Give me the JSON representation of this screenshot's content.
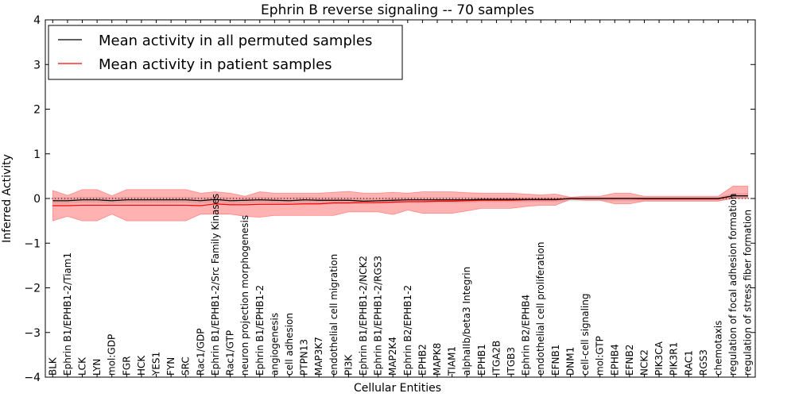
{
  "chart_data": {
    "type": "line",
    "title": "Ephrin B reverse signaling -- 70 samples",
    "xlabel": "Cellular Entities",
    "ylabel": "Inferred Activity",
    "ylim": [
      -4,
      4
    ],
    "yticks": [
      -4,
      -3,
      -2,
      -1,
      0,
      1,
      2,
      3,
      4
    ],
    "ytick_labels": [
      "−4",
      "−3",
      "−2",
      "−1",
      "0",
      "1",
      "2",
      "3",
      "4"
    ],
    "legend_position": "top-left",
    "categories": [
      "BLK",
      "Ephrin B1/EPHB1-2/Tiam1",
      "LCK",
      "LYN",
      "mol:GDP",
      "FGR",
      "HCK",
      "YES1",
      "FYN",
      "SRC",
      "Rac1/GDP",
      "Ephrin B1/EPHB1-2/Src Family Kinases",
      "Rac1/GTP",
      "neuron projection morphogenesis",
      "Ephrin B1/EPHB1-2",
      "angiogenesis",
      "cell adhesion",
      "PTPN13",
      "MAP3K7",
      "endothelial cell migration",
      "PI3K",
      "Ephrin B1/EPHB1-2/NCK2",
      "Ephrin B1/EPHB1-2/RGS3",
      "MAP2K4",
      "Ephrin B2/EPHB1-2",
      "EPHB2",
      "MAPK8",
      "TIAM1",
      "alphaIIb/beta3 Integrin",
      "EPHB1",
      "ITGA2B",
      "ITGB3",
      "Ephrin B2/EPHB4",
      "endothelial cell proliferation",
      "EFNB1",
      "DNM1",
      "cell-cell signaling",
      "mol:GTP",
      "EPHB4",
      "EFNB2",
      "NCK2",
      "PIK3CA",
      "PIK3R1",
      "RAC1",
      "RGS3",
      "chemotaxis",
      "regulation of focal adhesion formation",
      "regulation of stress fiber formation"
    ],
    "series": [
      {
        "name": "Mean activity in all permuted samples",
        "color": "#000000",
        "values": [
          -0.05,
          -0.05,
          -0.03,
          -0.03,
          -0.05,
          -0.03,
          -0.03,
          -0.03,
          -0.03,
          -0.03,
          -0.05,
          -0.02,
          -0.05,
          -0.04,
          -0.03,
          -0.04,
          -0.05,
          -0.03,
          -0.04,
          -0.04,
          -0.04,
          -0.06,
          -0.05,
          -0.04,
          -0.03,
          -0.03,
          -0.03,
          -0.03,
          -0.03,
          -0.02,
          -0.02,
          -0.02,
          -0.02,
          -0.02,
          -0.02,
          0.0,
          0.0,
          0.0,
          0.0,
          0.0,
          0.0,
          0.0,
          0.0,
          0.0,
          0.0,
          0.0,
          0.06,
          0.06
        ],
        "band_upper": [
          0.03,
          0.03,
          0.04,
          0.04,
          0.03,
          0.04,
          0.04,
          0.04,
          0.04,
          0.04,
          0.03,
          0.04,
          0.03,
          0.03,
          0.04,
          0.03,
          0.03,
          0.04,
          0.03,
          0.03,
          0.03,
          0.02,
          0.02,
          0.03,
          0.03,
          0.03,
          0.03,
          0.03,
          0.03,
          0.03,
          0.03,
          0.03,
          0.03,
          0.03,
          0.03,
          0.03,
          0.03,
          0.03,
          0.03,
          0.03,
          0.03,
          0.03,
          0.03,
          0.03,
          0.03,
          0.03,
          0.12,
          0.12
        ],
        "band_lower": [
          -0.12,
          -0.12,
          -0.1,
          -0.1,
          -0.12,
          -0.1,
          -0.1,
          -0.1,
          -0.1,
          -0.1,
          -0.12,
          -0.09,
          -0.12,
          -0.11,
          -0.1,
          -0.11,
          -0.12,
          -0.1,
          -0.11,
          -0.11,
          -0.11,
          -0.13,
          -0.12,
          -0.11,
          -0.1,
          -0.1,
          -0.1,
          -0.1,
          -0.1,
          -0.08,
          -0.08,
          -0.08,
          -0.08,
          -0.08,
          -0.08,
          -0.06,
          -0.06,
          -0.06,
          -0.06,
          -0.06,
          -0.06,
          -0.06,
          -0.06,
          -0.06,
          -0.06,
          -0.06,
          0.0,
          0.0
        ]
      },
      {
        "name": "Mean activity in patient samples",
        "color": "#ff0000",
        "values": [
          -0.16,
          -0.16,
          -0.15,
          -0.15,
          -0.15,
          -0.15,
          -0.15,
          -0.15,
          -0.15,
          -0.15,
          -0.16,
          -0.12,
          -0.14,
          -0.14,
          -0.13,
          -0.13,
          -0.13,
          -0.12,
          -0.12,
          -0.1,
          -0.1,
          -0.09,
          -0.09,
          -0.08,
          -0.07,
          -0.07,
          -0.06,
          -0.06,
          -0.05,
          -0.04,
          -0.04,
          -0.04,
          -0.03,
          -0.03,
          -0.03,
          0.0,
          0.0,
          0.0,
          0.0,
          0.0,
          -0.01,
          -0.01,
          -0.01,
          -0.01,
          -0.01,
          -0.01,
          0.06,
          0.06
        ],
        "band_upper": [
          0.18,
          0.07,
          0.2,
          0.2,
          0.06,
          0.2,
          0.2,
          0.2,
          0.2,
          0.2,
          0.12,
          0.15,
          0.12,
          0.05,
          0.15,
          0.12,
          0.12,
          0.12,
          0.12,
          0.14,
          0.16,
          0.12,
          0.12,
          0.14,
          0.12,
          0.15,
          0.15,
          0.15,
          0.13,
          0.12,
          0.12,
          0.12,
          0.1,
          0.08,
          0.1,
          0.03,
          0.05,
          0.05,
          0.12,
          0.12,
          0.05,
          0.05,
          0.05,
          0.05,
          0.05,
          0.05,
          0.28,
          0.28
        ],
        "band_lower": [
          -0.5,
          -0.4,
          -0.5,
          -0.5,
          -0.35,
          -0.5,
          -0.5,
          -0.5,
          -0.5,
          -0.5,
          -0.35,
          -0.35,
          -0.35,
          -0.4,
          -0.42,
          -0.38,
          -0.38,
          -0.38,
          -0.38,
          -0.38,
          -0.3,
          -0.3,
          -0.3,
          -0.36,
          -0.26,
          -0.33,
          -0.33,
          -0.33,
          -0.28,
          -0.22,
          -0.22,
          -0.22,
          -0.18,
          -0.15,
          -0.15,
          -0.02,
          -0.04,
          -0.04,
          -0.12,
          -0.12,
          -0.06,
          -0.06,
          -0.06,
          -0.06,
          -0.06,
          -0.06,
          0.0,
          0.0
        ]
      }
    ]
  }
}
